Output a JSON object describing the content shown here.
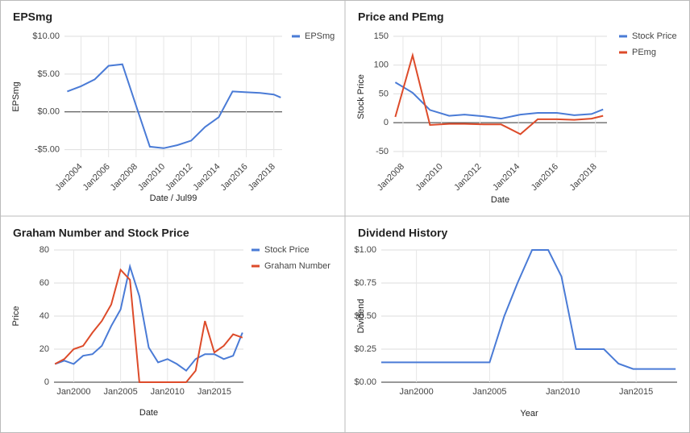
{
  "chart_data": [
    {
      "type": "line",
      "title": "EPSmg",
      "xlabel": "Date / Jul99",
      "ylabel": "EPSmg",
      "x": [
        2003.0,
        2004.0,
        2005.0,
        2006.0,
        2007.0,
        2008.0,
        2009.0,
        2010.0,
        2011.0,
        2012.0,
        2013.0,
        2014.0,
        2015.0,
        2016.0,
        2017.0,
        2018.0,
        2018.5
      ],
      "series": [
        {
          "name": "EPSmg",
          "color": "#4a7bd6",
          "values": [
            2.7,
            3.4,
            4.3,
            6.1,
            6.3,
            0.8,
            -4.6,
            -4.8,
            -4.4,
            -3.8,
            -2.0,
            -0.7,
            2.7,
            2.6,
            2.5,
            2.3,
            1.9
          ]
        }
      ],
      "xlim": [
        2002.8,
        2018.6
      ],
      "xticks": [
        {
          "value": 2004,
          "label": "Jan2004"
        },
        {
          "value": 2006,
          "label": "Jan2006"
        },
        {
          "value": 2008,
          "label": "Jan2008"
        },
        {
          "value": 2010,
          "label": "Jan2010"
        },
        {
          "value": 2012,
          "label": "Jan2012"
        },
        {
          "value": 2014,
          "label": "Jan2014"
        },
        {
          "value": 2016,
          "label": "Jan2016"
        },
        {
          "value": 2018,
          "label": "Jan2018"
        }
      ],
      "ylim": [
        -6,
        10
      ],
      "yticks": [
        {
          "value": -5,
          "label": "-$5.00"
        },
        {
          "value": 0,
          "label": "$0.00"
        },
        {
          "value": 5,
          "label": "$5.00"
        },
        {
          "value": 10,
          "label": "$10.00"
        }
      ],
      "grid": true,
      "legend": "right"
    },
    {
      "type": "line",
      "title": "Price and PEmg",
      "xlabel": "Date",
      "ylabel": "Stock Price",
      "x": [
        2007.6,
        2008.5,
        2009.4,
        2010.4,
        2011.2,
        2012.2,
        2013.1,
        2014.1,
        2015.0,
        2016.0,
        2016.9,
        2017.8,
        2018.4
      ],
      "series": [
        {
          "name": "Stock Price",
          "color": "#4a7bd6",
          "values": [
            70,
            52,
            22,
            12,
            14,
            11,
            7,
            14,
            17,
            17,
            13,
            15,
            23
          ]
        },
        {
          "name": "PEmg",
          "color": "#dd4b2a",
          "values": [
            10,
            117,
            -4,
            -2,
            -2,
            -3,
            -3,
            -20,
            6,
            6,
            5,
            7,
            12
          ]
        }
      ],
      "xlim": [
        2007.5,
        2018.6
      ],
      "xticks": [
        {
          "value": 2008,
          "label": "Jan2008"
        },
        {
          "value": 2010,
          "label": "Jan2010"
        },
        {
          "value": 2012,
          "label": "Jan2012"
        },
        {
          "value": 2014,
          "label": "Jan2014"
        },
        {
          "value": 2016,
          "label": "Jan2016"
        },
        {
          "value": 2018,
          "label": "Jan2018"
        }
      ],
      "ylim": [
        -60,
        150
      ],
      "yticks": [
        -50,
        0,
        50,
        100,
        150
      ],
      "grid": true,
      "legend": "right"
    },
    {
      "type": "line",
      "title": "Graham Number and Stock Price",
      "xlabel": "Date",
      "ylabel": "Price",
      "x": [
        1998,
        1999,
        2000,
        2001,
        2002,
        2003,
        2004,
        2005,
        2006,
        2007,
        2008,
        2009,
        2010,
        2011,
        2012,
        2013,
        2014,
        2015,
        2016,
        2017,
        2018
      ],
      "series": [
        {
          "name": "Stock Price",
          "color": "#4a7bd6",
          "values": [
            11,
            13,
            11,
            16,
            17,
            22,
            34,
            44,
            70,
            52,
            21,
            12,
            14,
            11,
            7,
            14,
            17,
            17,
            14,
            16,
            30
          ]
        },
        {
          "name": "Graham Number",
          "color": "#dd4b2a",
          "values": [
            11,
            14,
            20,
            22,
            30,
            37,
            47,
            68,
            62,
            0,
            0,
            0,
            0,
            0,
            0,
            7,
            37,
            18,
            22,
            29,
            27
          ]
        }
      ],
      "xlim": [
        1997.9,
        2018.1
      ],
      "xticks": [
        {
          "value": 2000,
          "label": "Jan2000"
        },
        {
          "value": 2005,
          "label": "Jan2005"
        },
        {
          "value": 2010,
          "label": "Jan2010"
        },
        {
          "value": 2015,
          "label": "Jan2015"
        }
      ],
      "ylim": [
        0,
        80
      ],
      "yticks": [
        0,
        20,
        40,
        60,
        80
      ],
      "grid": true,
      "legend": "right"
    },
    {
      "type": "line",
      "title": "Dividend History",
      "xlabel": "Year",
      "ylabel": "Dividend",
      "x": [
        1997.6,
        2005.0,
        2006.0,
        2006.9,
        2007.9,
        2009.0,
        2009.9,
        2010.9,
        2011.8,
        2012.8,
        2013.8,
        2014.8,
        2015.8,
        2016.7,
        2017.7
      ],
      "series": [
        {
          "color": "#4a7bd6",
          "values": [
            0.15,
            0.15,
            0.5,
            0.75,
            1.0,
            1.0,
            0.8,
            0.25,
            0.25,
            0.25,
            0.14,
            0.1,
            0.1,
            0.1,
            0.1
          ]
        }
      ],
      "xlim": [
        1997.6,
        2017.8
      ],
      "xticks": [
        {
          "value": 2000,
          "label": "Jan2000"
        },
        {
          "value": 2005,
          "label": "Jan2005"
        },
        {
          "value": 2010,
          "label": "Jan2010"
        },
        {
          "value": 2015,
          "label": "Jan2015"
        }
      ],
      "ylim": [
        0,
        1
      ],
      "yticks": [
        {
          "value": 0,
          "label": "$0.00"
        },
        {
          "value": 0.25,
          "label": "$0.25"
        },
        {
          "value": 0.5,
          "label": "$0.50"
        },
        {
          "value": 0.75,
          "label": "$0.75"
        },
        {
          "value": 1,
          "label": "$1.00"
        }
      ],
      "grid": true
    }
  ]
}
